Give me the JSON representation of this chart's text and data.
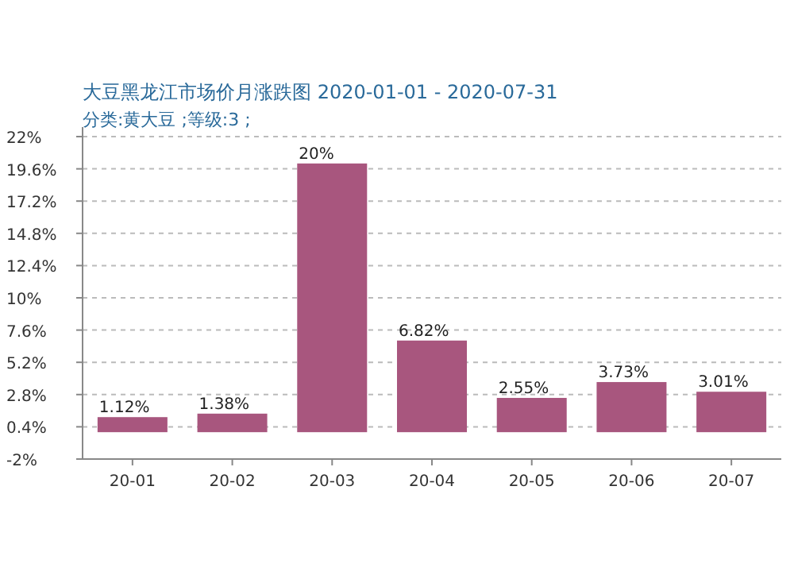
{
  "chart_data": {
    "type": "bar",
    "title": "大豆黑龙江市场价月涨跌图  2020-01-01 - 2020-07-31",
    "subtitle": "分类:黄大豆 ;等级:3 ;",
    "categories": [
      "20-01",
      "20-02",
      "20-03",
      "20-04",
      "20-05",
      "20-06",
      "20-07"
    ],
    "values": [
      1.12,
      1.38,
      20,
      6.82,
      2.55,
      3.73,
      3.01
    ],
    "value_labels": [
      "1.12%",
      "1.38%",
      "20%",
      "6.82%",
      "2.55%",
      "3.73%",
      "3.01%"
    ],
    "color": "#a8567e",
    "ylim": [
      -2,
      22
    ],
    "yticks": [
      {
        "value": -2,
        "label": "-2%"
      },
      {
        "value": 0.4,
        "label": "0.4%"
      },
      {
        "value": 2.8,
        "label": "2.8%"
      },
      {
        "value": 5.2,
        "label": "5.2%"
      },
      {
        "value": 7.6,
        "label": "7.6%"
      },
      {
        "value": 10,
        "label": "10%"
      },
      {
        "value": 12.4,
        "label": "12.4%"
      },
      {
        "value": 14.8,
        "label": "14.8%"
      },
      {
        "value": 17.2,
        "label": "17.2%"
      },
      {
        "value": 19.6,
        "label": "19.6%"
      },
      {
        "value": 22,
        "label": "22%"
      }
    ],
    "grid": "y"
  }
}
